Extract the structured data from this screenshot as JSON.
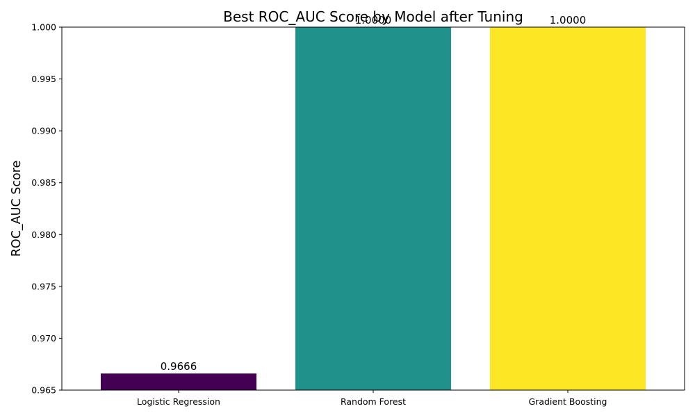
{
  "chart_data": {
    "type": "bar",
    "title": "Best ROC_AUC Score by Model after Tuning",
    "xlabel": "",
    "ylabel": "ROC_AUC Score",
    "categories": [
      "Logistic Regression",
      "Random Forest",
      "Gradient Boosting"
    ],
    "values": [
      0.9666,
      1.0,
      1.0
    ],
    "value_labels": [
      "0.9666",
      "1.0000",
      "1.0000"
    ],
    "colors": [
      "#440154",
      "#21918c",
      "#fde725"
    ],
    "ylim": [
      0.965,
      1.0
    ],
    "yticks": [
      0.965,
      0.97,
      0.975,
      0.98,
      0.985,
      0.99,
      0.995,
      1.0
    ],
    "ytick_labels": [
      "0.965",
      "0.970",
      "0.975",
      "0.980",
      "0.985",
      "0.990",
      "0.995",
      "1.000"
    ],
    "grid": false,
    "legend": "none"
  }
}
